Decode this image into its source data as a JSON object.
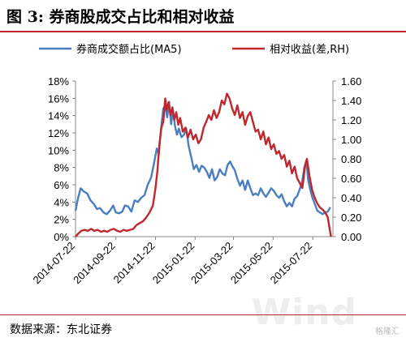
{
  "figure": {
    "title": "图 3: 券商股成交占比和相对收益",
    "source": "数据来源：东北证券",
    "watermark": "Wind",
    "badge": "格隆汇"
  },
  "colors": {
    "series1": "#4a7ec1",
    "series2": "#c0272d",
    "accent": "#c0272d"
  },
  "chart_data": {
    "type": "line",
    "title": "",
    "legend_position": "top",
    "x_ticks": [
      "2014-07-22",
      "2014-09-22",
      "2014-11-22",
      "2015-01-22",
      "2015-03-22",
      "2015-05-22",
      "2015-07-22"
    ],
    "x_range": [
      "2014-07-22",
      "2015-08-22"
    ],
    "y_left": {
      "ticks": [
        "0%",
        "2%",
        "4%",
        "6%",
        "8%",
        "10%",
        "12%",
        "14%",
        "16%",
        "18%"
      ],
      "range": [
        0,
        18
      ]
    },
    "y_right": {
      "ticks": [
        "0.00",
        "0.20",
        "0.40",
        "0.60",
        "0.80",
        "1.00",
        "1.20",
        "1.40",
        "1.60"
      ],
      "range": [
        0,
        1.6
      ]
    },
    "series": [
      {
        "name": "券商成交额占比(MA5)",
        "axis": "left",
        "points": [
          [
            "2014-07-22",
            3.0
          ],
          [
            "2014-07-26",
            4.5
          ],
          [
            "2014-07-30",
            5.6
          ],
          [
            "2014-08-04",
            5.2
          ],
          [
            "2014-08-09",
            5.0
          ],
          [
            "2014-08-14",
            4.2
          ],
          [
            "2014-08-19",
            3.8
          ],
          [
            "2014-08-24",
            3.2
          ],
          [
            "2014-08-29",
            3.3
          ],
          [
            "2014-09-03",
            2.8
          ],
          [
            "2014-09-08",
            2.6
          ],
          [
            "2014-09-13",
            3.0
          ],
          [
            "2014-09-18",
            3.6
          ],
          [
            "2014-09-22",
            2.8
          ],
          [
            "2014-09-27",
            2.7
          ],
          [
            "2014-10-02",
            2.9
          ],
          [
            "2014-10-06",
            3.6
          ],
          [
            "2014-10-11",
            3.5
          ],
          [
            "2014-10-16",
            2.9
          ],
          [
            "2014-10-21",
            4.2
          ],
          [
            "2014-10-26",
            4.0
          ],
          [
            "2014-10-31",
            4.5
          ],
          [
            "2014-11-05",
            4.8
          ],
          [
            "2014-11-10",
            6.0
          ],
          [
            "2014-11-15",
            6.8
          ],
          [
            "2014-11-19",
            8.2
          ],
          [
            "2014-11-24",
            10.2
          ],
          [
            "2014-11-27",
            9.5
          ],
          [
            "2014-12-01",
            12.8
          ],
          [
            "2014-12-04",
            14.8
          ],
          [
            "2014-12-07",
            15.2
          ],
          [
            "2014-12-10",
            13.8
          ],
          [
            "2014-12-13",
            15.6
          ],
          [
            "2014-12-16",
            13.0
          ],
          [
            "2014-12-19",
            14.6
          ],
          [
            "2014-12-22",
            12.8
          ],
          [
            "2014-12-25",
            11.8
          ],
          [
            "2014-12-28",
            12.5
          ],
          [
            "2015-01-01",
            11.5
          ],
          [
            "2015-01-05",
            11.8
          ],
          [
            "2015-01-08",
            12.6
          ],
          [
            "2015-01-12",
            10.5
          ],
          [
            "2015-01-16",
            9.2
          ],
          [
            "2015-01-20",
            7.8
          ],
          [
            "2015-01-24",
            8.3
          ],
          [
            "2015-01-28",
            7.5
          ],
          [
            "2015-02-01",
            8.2
          ],
          [
            "2015-02-05",
            8.0
          ],
          [
            "2015-02-09",
            7.5
          ],
          [
            "2015-02-13",
            6.8
          ],
          [
            "2015-02-17",
            7.8
          ],
          [
            "2015-02-21",
            6.5
          ],
          [
            "2015-02-25",
            6.9
          ],
          [
            "2015-03-01",
            7.8
          ],
          [
            "2015-03-05",
            7.3
          ],
          [
            "2015-03-09",
            7.1
          ],
          [
            "2015-03-13",
            8.3
          ],
          [
            "2015-03-17",
            8.7
          ],
          [
            "2015-03-20",
            8.2
          ],
          [
            "2015-03-24",
            7.7
          ],
          [
            "2015-03-28",
            6.7
          ],
          [
            "2015-04-01",
            5.9
          ],
          [
            "2015-04-05",
            6.5
          ],
          [
            "2015-04-09",
            5.4
          ],
          [
            "2015-04-13",
            6.5
          ],
          [
            "2015-04-17",
            5.6
          ],
          [
            "2015-04-21",
            4.8
          ],
          [
            "2015-04-25",
            5.0
          ],
          [
            "2015-04-29",
            4.8
          ],
          [
            "2015-05-03",
            5.6
          ],
          [
            "2015-05-07",
            5.0
          ],
          [
            "2015-05-11",
            4.6
          ],
          [
            "2015-05-15",
            5.1
          ],
          [
            "2015-05-19",
            5.6
          ],
          [
            "2015-05-23",
            5.3
          ],
          [
            "2015-05-27",
            4.8
          ],
          [
            "2015-05-31",
            4.5
          ],
          [
            "2015-06-04",
            4.9
          ],
          [
            "2015-06-08",
            4.1
          ],
          [
            "2015-06-12",
            3.5
          ],
          [
            "2015-06-16",
            3.9
          ],
          [
            "2015-06-20",
            3.5
          ],
          [
            "2015-06-24",
            4.4
          ],
          [
            "2015-06-28",
            4.7
          ],
          [
            "2015-07-02",
            5.5
          ],
          [
            "2015-07-06",
            6.5
          ],
          [
            "2015-07-09",
            8.0
          ],
          [
            "2015-07-12",
            8.8
          ],
          [
            "2015-07-15",
            6.5
          ],
          [
            "2015-07-18",
            5.5
          ],
          [
            "2015-07-21",
            4.6
          ],
          [
            "2015-07-25",
            3.8
          ],
          [
            "2015-07-29",
            3.0
          ],
          [
            "2015-08-02",
            2.8
          ],
          [
            "2015-08-06",
            2.6
          ],
          [
            "2015-08-10",
            2.8
          ],
          [
            "2015-08-14",
            2.9
          ],
          [
            "2015-08-18",
            3.4
          ]
        ]
      },
      {
        "name": "相对收益(差,RH)",
        "axis": "right",
        "points": [
          [
            "2014-07-22",
            0.0
          ],
          [
            "2014-07-26",
            0.03
          ],
          [
            "2014-07-31",
            0.06
          ],
          [
            "2014-08-05",
            0.07
          ],
          [
            "2014-08-10",
            0.06
          ],
          [
            "2014-08-15",
            0.08
          ],
          [
            "2014-08-20",
            0.06
          ],
          [
            "2014-08-25",
            0.07
          ],
          [
            "2014-08-30",
            0.05
          ],
          [
            "2014-09-04",
            0.06
          ],
          [
            "2014-09-09",
            0.05
          ],
          [
            "2014-09-14",
            0.07
          ],
          [
            "2014-09-19",
            0.08
          ],
          [
            "2014-09-24",
            0.06
          ],
          [
            "2014-09-29",
            0.05
          ],
          [
            "2014-10-04",
            0.07
          ],
          [
            "2014-10-09",
            0.06
          ],
          [
            "2014-10-14",
            0.07
          ],
          [
            "2014-10-19",
            0.08
          ],
          [
            "2014-10-24",
            0.12
          ],
          [
            "2014-10-29",
            0.14
          ],
          [
            "2014-11-03",
            0.16
          ],
          [
            "2014-11-08",
            0.2
          ],
          [
            "2014-11-13",
            0.25
          ],
          [
            "2014-11-18",
            0.32
          ],
          [
            "2014-11-22",
            0.5
          ],
          [
            "2014-11-25",
            0.68
          ],
          [
            "2014-11-28",
            0.95
          ],
          [
            "2014-12-01",
            1.12
          ],
          [
            "2014-12-04",
            1.18
          ],
          [
            "2014-12-07",
            1.42
          ],
          [
            "2014-12-09",
            1.3
          ],
          [
            "2014-12-12",
            1.38
          ],
          [
            "2014-12-15",
            1.25
          ],
          [
            "2014-12-18",
            1.33
          ],
          [
            "2014-12-21",
            1.2
          ],
          [
            "2014-12-24",
            1.28
          ],
          [
            "2014-12-27",
            1.15
          ],
          [
            "2014-12-30",
            1.22
          ],
          [
            "2015-01-03",
            1.08
          ],
          [
            "2015-01-07",
            1.12
          ],
          [
            "2015-01-11",
            1.02
          ],
          [
            "2015-01-15",
            1.1
          ],
          [
            "2015-01-19",
            1.0
          ],
          [
            "2015-01-23",
            1.05
          ],
          [
            "2015-01-27",
            0.96
          ],
          [
            "2015-01-31",
            1.0
          ],
          [
            "2015-02-04",
            1.12
          ],
          [
            "2015-02-08",
            1.18
          ],
          [
            "2015-02-12",
            1.25
          ],
          [
            "2015-02-16",
            1.2
          ],
          [
            "2015-02-20",
            1.3
          ],
          [
            "2015-02-24",
            1.22
          ],
          [
            "2015-02-28",
            1.28
          ],
          [
            "2015-03-04",
            1.4
          ],
          [
            "2015-03-08",
            1.36
          ],
          [
            "2015-03-12",
            1.47
          ],
          [
            "2015-03-16",
            1.42
          ],
          [
            "2015-03-20",
            1.32
          ],
          [
            "2015-03-24",
            1.25
          ],
          [
            "2015-03-28",
            1.35
          ],
          [
            "2015-04-01",
            1.22
          ],
          [
            "2015-04-05",
            1.28
          ],
          [
            "2015-04-09",
            1.15
          ],
          [
            "2015-04-13",
            1.24
          ],
          [
            "2015-04-17",
            1.28
          ],
          [
            "2015-04-21",
            1.18
          ],
          [
            "2015-04-25",
            1.08
          ],
          [
            "2015-04-29",
            1.1
          ],
          [
            "2015-05-03",
            1.0
          ],
          [
            "2015-05-07",
            1.08
          ],
          [
            "2015-05-11",
            0.95
          ],
          [
            "2015-05-15",
            1.02
          ],
          [
            "2015-05-19",
            0.9
          ],
          [
            "2015-05-23",
            0.95
          ],
          [
            "2015-05-27",
            0.85
          ],
          [
            "2015-05-31",
            0.88
          ],
          [
            "2015-06-04",
            0.8
          ],
          [
            "2015-06-08",
            0.84
          ],
          [
            "2015-06-12",
            0.72
          ],
          [
            "2015-06-16",
            0.78
          ],
          [
            "2015-06-20",
            0.65
          ],
          [
            "2015-06-24",
            0.72
          ],
          [
            "2015-06-28",
            0.6
          ],
          [
            "2015-07-02",
            0.55
          ],
          [
            "2015-07-06",
            0.5
          ],
          [
            "2015-07-10",
            0.72
          ],
          [
            "2015-07-13",
            0.8
          ],
          [
            "2015-07-17",
            0.62
          ],
          [
            "2015-07-21",
            0.48
          ],
          [
            "2015-07-25",
            0.4
          ],
          [
            "2015-07-29",
            0.34
          ],
          [
            "2015-08-02",
            0.3
          ],
          [
            "2015-08-06",
            0.28
          ],
          [
            "2015-08-10",
            0.25
          ],
          [
            "2015-08-14",
            0.2
          ],
          [
            "2015-08-17",
            0.08
          ],
          [
            "2015-08-19",
            0.0
          ]
        ]
      }
    ]
  }
}
